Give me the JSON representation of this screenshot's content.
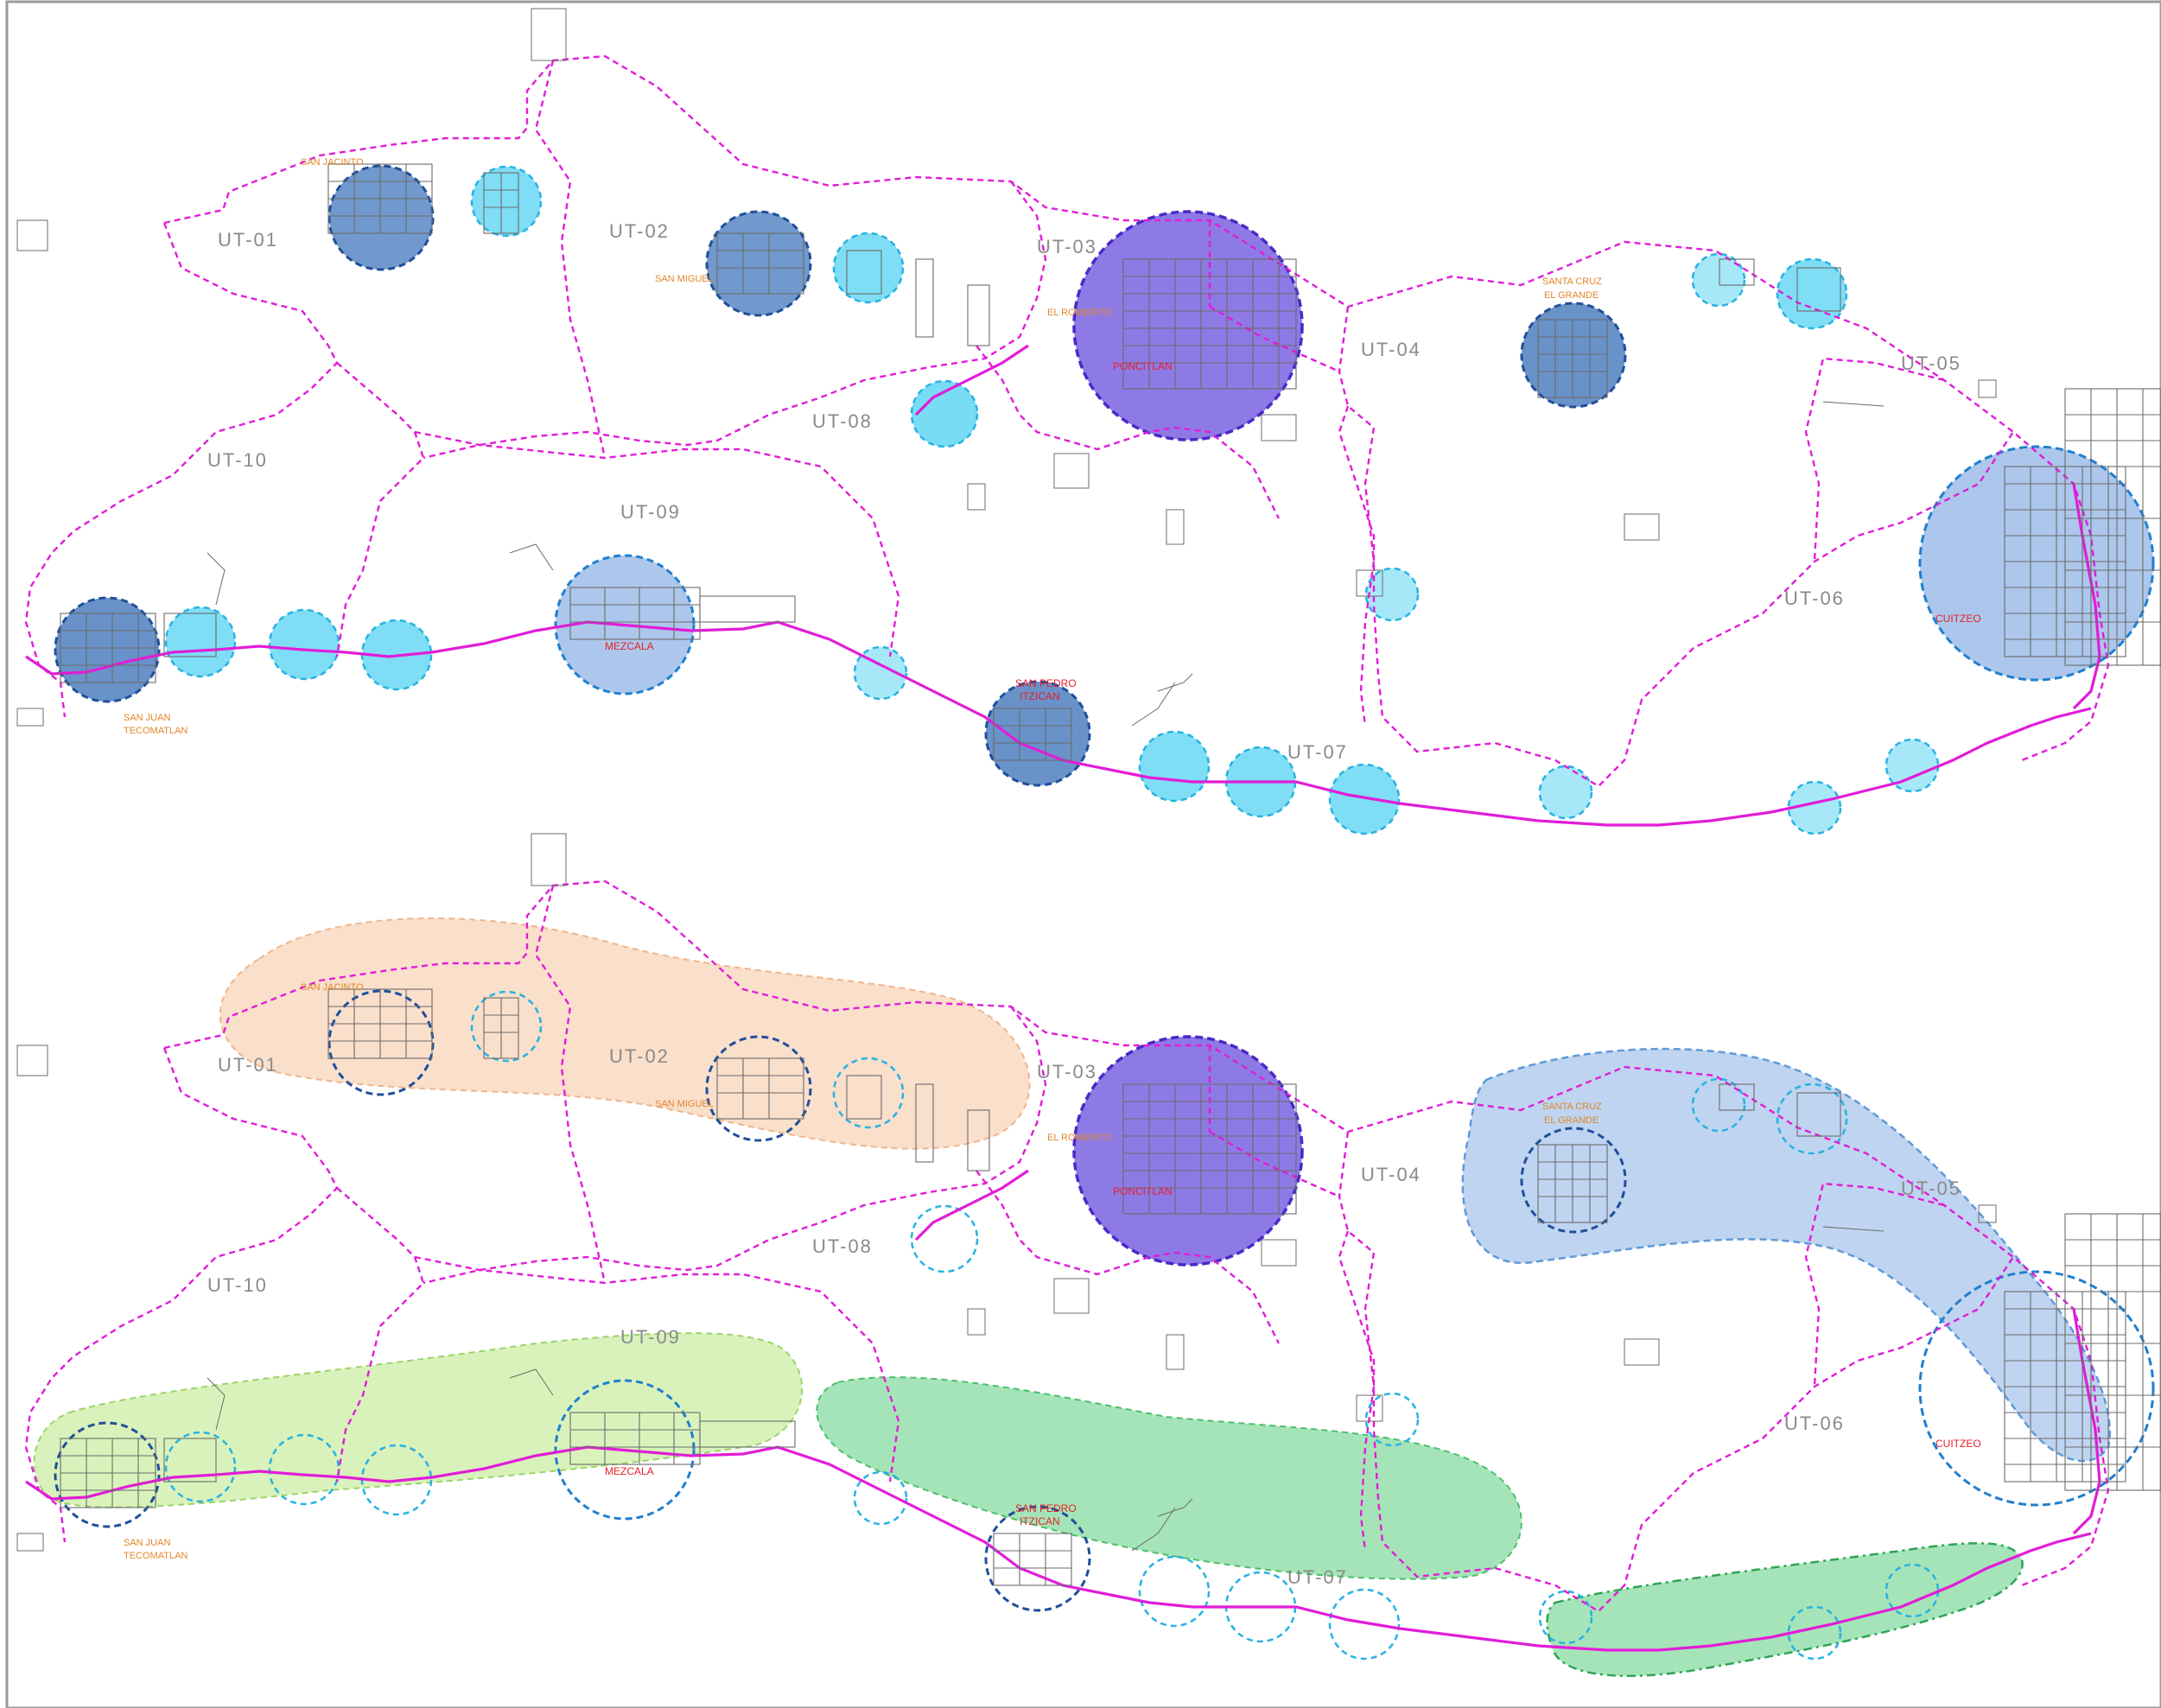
{
  "colors": {
    "boundary": "#e21cd8",
    "urban_text": "#8a8a8a",
    "town_minor": "#e0872a",
    "town_major": "#e8202a",
    "circle_large": "#4f7fc0",
    "circle_medium": "#67b4ea",
    "circle_small": "#5fd6f2",
    "circle_metro": "#7a63e0",
    "zone_orange": "#f6c9a8",
    "zone_lightgreen": "#c9ec9e",
    "zone_green": "#7fd99a",
    "zone_blue": "#9dbde8"
  },
  "panels": [
    {
      "id": "top",
      "units": [
        "UT-01",
        "UT-02",
        "UT-03",
        "UT-04",
        "UT-05",
        "UT-06",
        "UT-07",
        "UT-08",
        "UT-09",
        "UT-10"
      ],
      "towns": [
        {
          "name": "SAN JACINTO",
          "style": "minor"
        },
        {
          "name": "SAN MIGUEL",
          "style": "minor"
        },
        {
          "name": "EL ROMERITO",
          "style": "minor"
        },
        {
          "name": "PONCITLAN",
          "style": "major"
        },
        {
          "name": "SANTA CRUZ",
          "style": "minor"
        },
        {
          "name": "EL GRANDE",
          "style": "minor"
        },
        {
          "name": "CUITZEO",
          "style": "major"
        },
        {
          "name": "MEZCALA",
          "style": "major"
        },
        {
          "name": "SAN PEDRO",
          "style": "major"
        },
        {
          "name": "ITZICAN",
          "style": "major"
        },
        {
          "name": "SAN JUAN",
          "style": "minor"
        },
        {
          "name": "TECOMATLAN",
          "style": "minor"
        }
      ]
    },
    {
      "id": "bottom",
      "units": [
        "UT-01",
        "UT-02",
        "UT-03",
        "UT-04",
        "UT-05",
        "UT-06",
        "UT-07",
        "UT-08",
        "UT-09",
        "UT-10"
      ],
      "towns": [
        {
          "name": "SAN JACINTO",
          "style": "minor"
        },
        {
          "name": "SAN MIGUEL",
          "style": "minor"
        },
        {
          "name": "EL ROMERITO",
          "style": "minor"
        },
        {
          "name": "PONCITLAN",
          "style": "major"
        },
        {
          "name": "SANTA CRUZ",
          "style": "minor"
        },
        {
          "name": "EL GRANDE",
          "style": "minor"
        },
        {
          "name": "CUITZEO",
          "style": "major"
        },
        {
          "name": "MEZCALA",
          "style": "major"
        },
        {
          "name": "SAN PEDRO",
          "style": "major"
        },
        {
          "name": "ITZICAN",
          "style": "major"
        },
        {
          "name": "SAN JUAN",
          "style": "minor"
        },
        {
          "name": "TECOMATLAN",
          "style": "minor"
        }
      ]
    }
  ]
}
